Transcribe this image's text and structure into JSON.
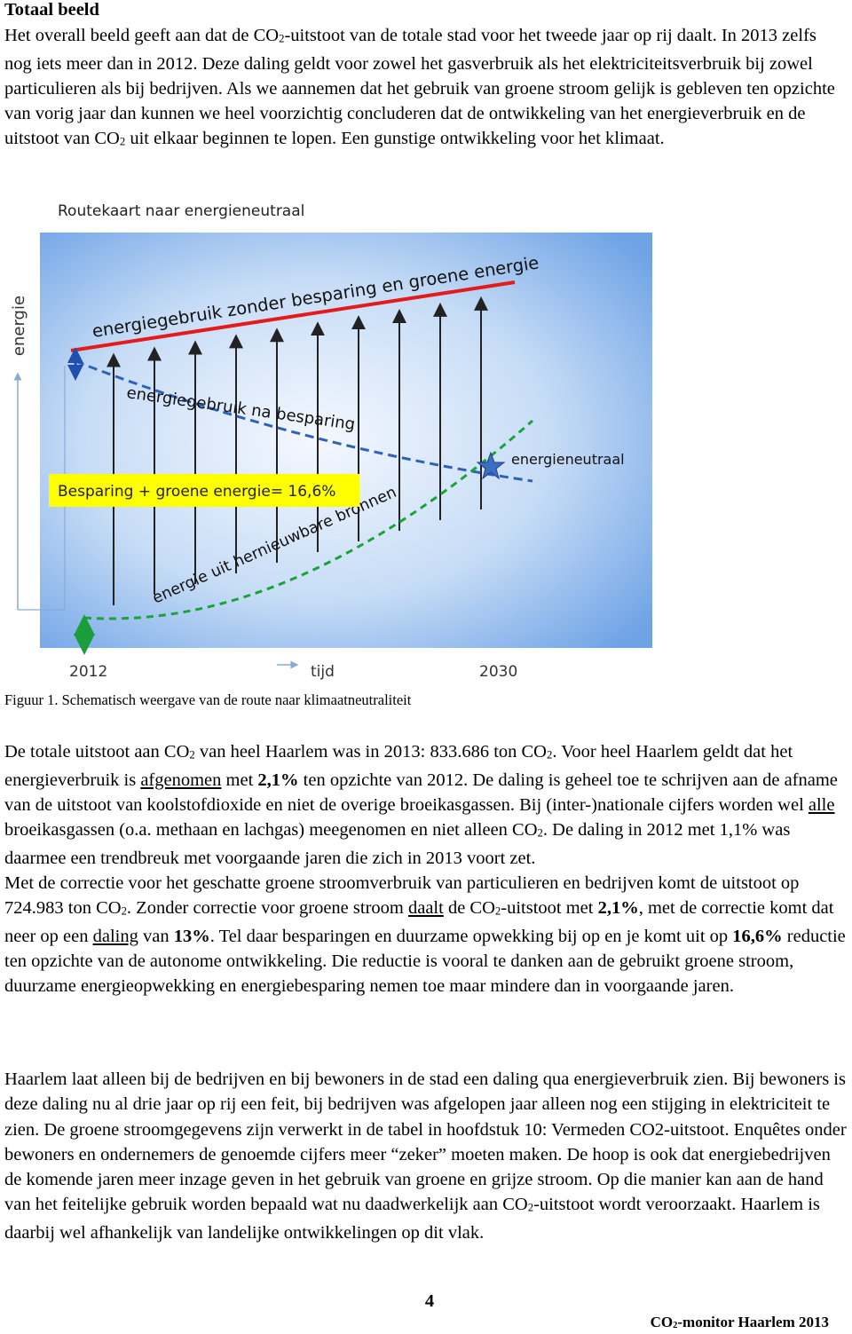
{
  "heading": "Totaal beeld",
  "paragraphs": [
    [
      "Het overall beeld geeft aan dat de CO",
      {
        "text": "2",
        "style": "sub"
      },
      "-uitstoot van de totale stad voor het tweede jaar op rij daalt. In 2013 zelfs nog iets meer dan in 2012. Deze daling geldt voor zowel het gasverbruik als het elektriciteitsverbruik bij zowel particulieren als bij bedrijven. Als we aannemen dat het gebruik van groene stroom gelijk is gebleven ten opzichte van vorig jaar dan kunnen we heel voorzichtig concluderen dat de ontwikkeling van het energieverbruik en de uitstoot van CO",
      {
        "text": "2",
        "style": "sub"
      },
      " uit elkaar beginnen te lopen. Een gunstige ontwikkeling voor het klimaat."
    ],
    [
      "De totale uitstoot aan CO",
      {
        "text": "2",
        "style": "sub"
      },
      " van heel Haarlem was in 2013: 833.686 ton CO",
      {
        "text": "2",
        "style": "sub"
      },
      ". Voor heel Haarlem geldt dat het energieverbruik is ",
      {
        "text": "afgenomen",
        "style": "underline"
      },
      " met ",
      {
        "text": "2,1%",
        "style": "bold"
      },
      " ten opzichte van 2012. De daling is geheel toe te schrijven aan de afname van de uitstoot van koolstofdioxide en niet de overige broeikasgassen. Bij (inter-)nationale cijfers worden wel ",
      {
        "text": "alle",
        "style": "underline"
      },
      " broeikasgassen (o.a. methaan en lachgas) meegenomen en niet alleen CO",
      {
        "text": "2",
        "style": "sub"
      },
      ". De daling in 2012 met 1,1% was daarmee een trendbreuk met voorgaande jaren die zich in 2013 voort zet."
    ],
    [
      "Met de correctie voor het geschatte groene stroomverbruik van particulieren en bedrijven komt de uitstoot op 724.983 ton CO",
      {
        "text": "2",
        "style": "sub"
      },
      ". Zonder correctie voor groene stroom ",
      {
        "text": "daalt",
        "style": "underline"
      },
      " de CO",
      {
        "text": "2",
        "style": "sub"
      },
      "-uitstoot met ",
      {
        "text": "2,1%",
        "style": "bold"
      },
      ", met de correctie komt dat neer op een ",
      {
        "text": "daling",
        "style": "underline"
      },
      " van ",
      {
        "text": "13%",
        "style": "bold"
      },
      ". Tel daar besparingen en duurzame opwekking bij op en je komt uit op ",
      {
        "text": "16,6%",
        "style": "bold"
      },
      " reductie ten opzichte van de autonome ontwikkeling. Die reductie is vooral te danken aan de gebruikt groene stroom, duurzame energieopwekking en energiebesparing nemen toe maar mindere dan in voorgaande jaren."
    ],
    [
      "Haarlem laat alleen bij de bedrijven en bij bewoners in de stad een daling qua energieverbruik zien. Bij bewoners is deze daling nu al drie jaar op rij een feit, bij bedrijven was afgelopen jaar alleen nog een stijging in elektriciteit te zien. De groene stroomgegevens zijn verwerkt in de tabel in hoofdstuk 10: Vermeden CO2-uitstoot. Enquêtes onder bewoners en ondernemers de genoemde cijfers meer “zeker” moeten maken. De hoop is ook dat energiebedrijven de komende jaren meer inzage geven in het gebruik van groene en grijze stroom. Op die manier kan aan de hand van het feitelijke gebruik worden bepaald wat nu daadwerkelijk aan CO",
      {
        "text": "2",
        "style": "sub"
      },
      "-uitstoot wordt veroorzaakt. Haarlem is daarbij wel afhankelijk van landelijke ontwikkelingen op dit vlak."
    ]
  ],
  "figure": {
    "title": "Routekaart naar energieneutraal",
    "y_axis_label": "energie",
    "upper_line_label": "energiegebruik zonder besparing en groene energie",
    "middle_line_label": "energiegebruik na besparing",
    "lower_line_label": "energie uit hernieuwbare bronnen",
    "point_label": "energieneutraal",
    "box_label": "Besparing + groene energie= 16,6%",
    "x_start": "2012",
    "x_axis_label": "tijd",
    "x_end": "2030"
  },
  "caption": "Figuur 1. Schematisch weergave van de route naar klimaatneutraliteit",
  "page_number": "4",
  "footer": [
    "CO",
    {
      "text": "2",
      "style": "sub"
    },
    "-monitor Haarlem 2013"
  ]
}
